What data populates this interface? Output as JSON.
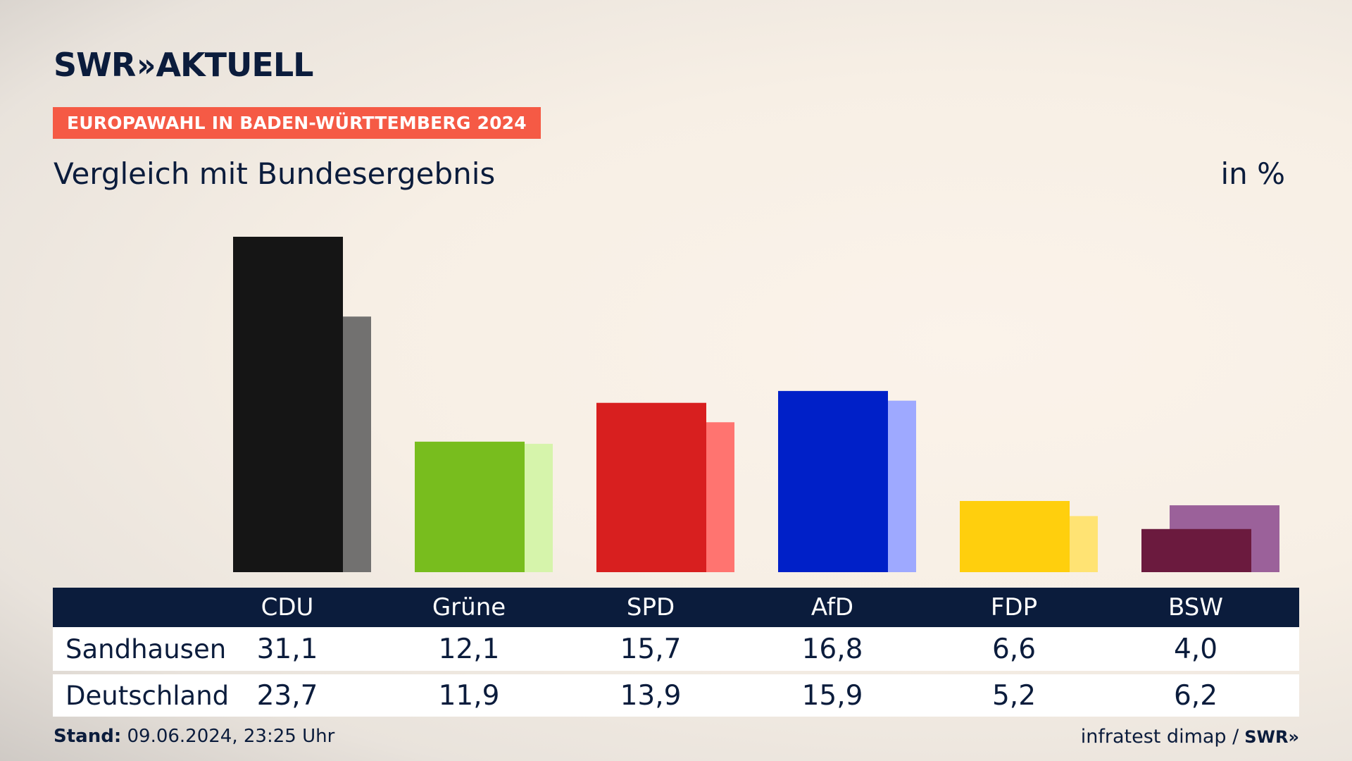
{
  "header": {
    "logo_text": "SWR",
    "logo_chevrons": "»",
    "logo_aktuell": "AKTUELL",
    "tag": "EUROPAWAHL IN BADEN-WÜRTTEMBERG 2024",
    "subtitle": "Vergleich mit Bundesergebnis",
    "unit": "in %"
  },
  "table": {
    "rows": [
      {
        "label": "Sandhausen",
        "values": [
          "31,1",
          "12,1",
          "15,7",
          "16,8",
          "6,6",
          "4,0"
        ]
      },
      {
        "label": "Deutschland",
        "values": [
          "23,7",
          "11,9",
          "13,9",
          "15,9",
          "5,2",
          "6,2"
        ]
      }
    ]
  },
  "footer": {
    "stand_label": "Stand:",
    "stand_value": "09.06.2024, 23:25 Uhr",
    "source": "infratest dimap /",
    "source_logo": "SWR»"
  },
  "chart_data": {
    "type": "bar",
    "categories": [
      "CDU",
      "Grüne",
      "SPD",
      "AfD",
      "FDP",
      "BSW"
    ],
    "series": [
      {
        "name": "Sandhausen",
        "values": [
          31.1,
          12.1,
          15.7,
          16.8,
          6.6,
          4.0
        ]
      },
      {
        "name": "Deutschland",
        "values": [
          23.7,
          11.9,
          13.9,
          15.9,
          5.2,
          6.2
        ]
      }
    ],
    "colors": {
      "Sandhausen": [
        "#151515",
        "#78bd1e",
        "#d81f1f",
        "#0020c8",
        "#ffcf0d",
        "#6b1a3e"
      ],
      "Deutschland": [
        "#727170",
        "#d6f4ab",
        "#ff7470",
        "#9ea9ff",
        "#ffe373",
        "#9b619a"
      ]
    },
    "title": "",
    "xlabel": "",
    "ylabel": "",
    "ylim": [
      0,
      31.1
    ],
    "grid": false,
    "legend": "table below chart"
  }
}
